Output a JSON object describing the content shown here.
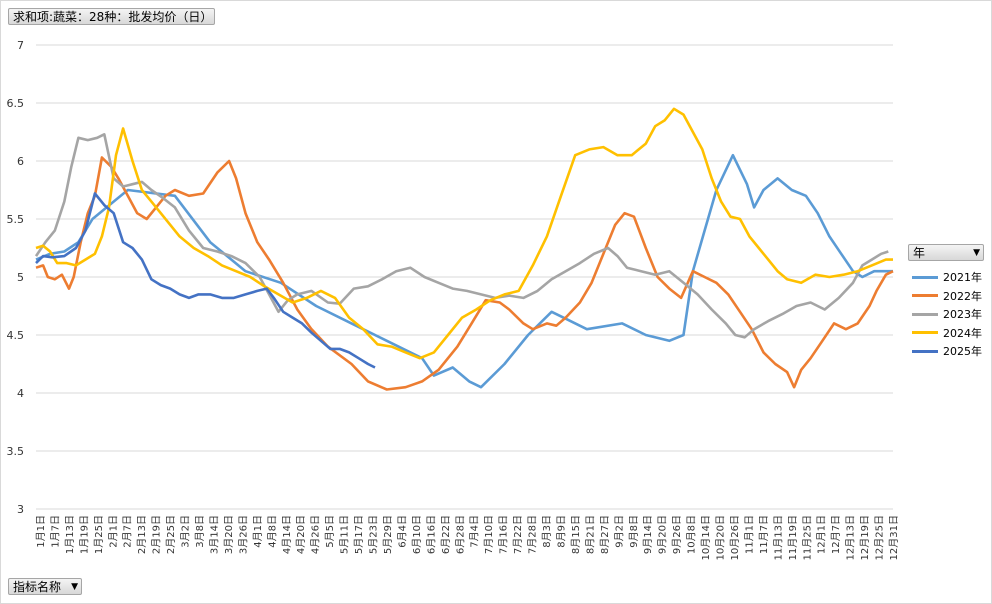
{
  "value_field_label": "求和项:蔬菜：28种：批发均价（日）",
  "legend_field_label": "年",
  "axis_field_label": "指标名称",
  "chart_data": {
    "type": "line",
    "ylim": [
      3,
      7
    ],
    "yticks": [
      "3",
      "3.5",
      "4",
      "4.5",
      "5",
      "5.5",
      "6",
      "6.5",
      "7"
    ],
    "x_axis": "day of year (Jan 1 – Dec 31)",
    "xtick_labels": [
      "1月1日",
      "1月7日",
      "1月13日",
      "1月19日",
      "1月25日",
      "2月1日",
      "2月7日",
      "2月13日",
      "2月19日",
      "2月25日",
      "3月2日",
      "3月8日",
      "3月14日",
      "3月20日",
      "3月26日",
      "4月1日",
      "4月8日",
      "4月14日",
      "4月20日",
      "4月26日",
      "5月5日",
      "5月11日",
      "5月17日",
      "5月23日",
      "5月29日",
      "6月4日",
      "6月10日",
      "6月16日",
      "6月22日",
      "6月28日",
      "7月4日",
      "7月10日",
      "7月16日",
      "7月22日",
      "7月28日",
      "8月3日",
      "8月9日",
      "8月15日",
      "8月21日",
      "8月27日",
      "9月2日",
      "9月8日",
      "9月14日",
      "9月20日",
      "9月26日",
      "10月8日",
      "10月14日",
      "10月20日",
      "10月26日",
      "11月1日",
      "11月7日",
      "11月13日",
      "11月19日",
      "11月25日",
      "12月1日",
      "12月7日",
      "12月13日",
      "12月19日",
      "12月25日",
      "12月31日"
    ],
    "series": [
      {
        "name": "2021年",
        "color": "#5b9bd5",
        "points": [
          [
            1,
            5.15
          ],
          [
            7,
            5.2
          ],
          [
            13,
            5.22
          ],
          [
            19,
            5.3
          ],
          [
            25,
            5.5
          ],
          [
            31,
            5.6
          ],
          [
            40,
            5.75
          ],
          [
            60,
            5.7
          ],
          [
            75,
            5.3
          ],
          [
            90,
            5.05
          ],
          [
            105,
            4.95
          ],
          [
            120,
            4.75
          ],
          [
            135,
            4.6
          ],
          [
            150,
            4.45
          ],
          [
            165,
            4.3
          ],
          [
            170,
            4.15
          ],
          [
            178,
            4.22
          ],
          [
            185,
            4.1
          ],
          [
            190,
            4.05
          ],
          [
            200,
            4.25
          ],
          [
            210,
            4.5
          ],
          [
            220,
            4.7
          ],
          [
            225,
            4.65
          ],
          [
            235,
            4.55
          ],
          [
            250,
            4.6
          ],
          [
            260,
            4.5
          ],
          [
            270,
            4.45
          ],
          [
            276,
            4.5
          ],
          [
            280,
            5.05
          ],
          [
            285,
            5.4
          ],
          [
            290,
            5.75
          ],
          [
            297,
            6.05
          ],
          [
            303,
            5.8
          ],
          [
            306,
            5.6
          ],
          [
            310,
            5.75
          ],
          [
            316,
            5.85
          ],
          [
            322,
            5.75
          ],
          [
            328,
            5.7
          ],
          [
            333,
            5.55
          ],
          [
            338,
            5.35
          ],
          [
            343,
            5.2
          ],
          [
            348,
            5.05
          ],
          [
            352,
            5.0
          ],
          [
            357,
            5.05
          ],
          [
            365,
            5.05
          ]
        ]
      },
      {
        "name": "2022年",
        "color": "#ed7d31",
        "points": [
          [
            1,
            5.08
          ],
          [
            4,
            5.1
          ],
          [
            6,
            5.0
          ],
          [
            9,
            4.98
          ],
          [
            12,
            5.02
          ],
          [
            15,
            4.9
          ],
          [
            17,
            5.0
          ],
          [
            20,
            5.3
          ],
          [
            23,
            5.55
          ],
          [
            26,
            5.7
          ],
          [
            29,
            6.03
          ],
          [
            33,
            5.95
          ],
          [
            36,
            5.85
          ],
          [
            40,
            5.7
          ],
          [
            44,
            5.55
          ],
          [
            48,
            5.5
          ],
          [
            52,
            5.6
          ],
          [
            56,
            5.7
          ],
          [
            60,
            5.75
          ],
          [
            66,
            5.7
          ],
          [
            72,
            5.72
          ],
          [
            78,
            5.9
          ],
          [
            83,
            6.0
          ],
          [
            86,
            5.85
          ],
          [
            90,
            5.55
          ],
          [
            95,
            5.3
          ],
          [
            100,
            5.15
          ],
          [
            106,
            4.95
          ],
          [
            112,
            4.72
          ],
          [
            118,
            4.55
          ],
          [
            125,
            4.4
          ],
          [
            135,
            4.25
          ],
          [
            142,
            4.1
          ],
          [
            150,
            4.03
          ],
          [
            158,
            4.05
          ],
          [
            165,
            4.1
          ],
          [
            172,
            4.2
          ],
          [
            180,
            4.4
          ],
          [
            186,
            4.6
          ],
          [
            192,
            4.8
          ],
          [
            198,
            4.78
          ],
          [
            202,
            4.72
          ],
          [
            208,
            4.6
          ],
          [
            212,
            4.55
          ],
          [
            218,
            4.6
          ],
          [
            222,
            4.58
          ],
          [
            226,
            4.65
          ],
          [
            232,
            4.78
          ],
          [
            237,
            4.95
          ],
          [
            242,
            5.2
          ],
          [
            247,
            5.45
          ],
          [
            251,
            5.55
          ],
          [
            255,
            5.52
          ],
          [
            260,
            5.25
          ],
          [
            265,
            5.0
          ],
          [
            270,
            4.9
          ],
          [
            275,
            4.82
          ],
          [
            280,
            5.05
          ],
          [
            285,
            5.0
          ],
          [
            290,
            4.95
          ],
          [
            295,
            4.85
          ],
          [
            300,
            4.7
          ],
          [
            305,
            4.55
          ],
          [
            310,
            4.35
          ],
          [
            315,
            4.25
          ],
          [
            320,
            4.18
          ],
          [
            323,
            4.05
          ],
          [
            326,
            4.2
          ],
          [
            330,
            4.3
          ],
          [
            335,
            4.45
          ],
          [
            340,
            4.6
          ],
          [
            345,
            4.55
          ],
          [
            350,
            4.6
          ],
          [
            355,
            4.75
          ],
          [
            358,
            4.88
          ],
          [
            362,
            5.02
          ],
          [
            365,
            5.05
          ]
        ]
      },
      {
        "name": "2023年",
        "color": "#a5a5a5",
        "points": [
          [
            1,
            5.18
          ],
          [
            5,
            5.3
          ],
          [
            9,
            5.4
          ],
          [
            13,
            5.65
          ],
          [
            16,
            5.95
          ],
          [
            19,
            6.2
          ],
          [
            23,
            6.18
          ],
          [
            27,
            6.2
          ],
          [
            30,
            6.23
          ],
          [
            34,
            5.85
          ],
          [
            38,
            5.78
          ],
          [
            42,
            5.8
          ],
          [
            46,
            5.82
          ],
          [
            50,
            5.75
          ],
          [
            55,
            5.68
          ],
          [
            60,
            5.6
          ],
          [
            66,
            5.4
          ],
          [
            72,
            5.25
          ],
          [
            78,
            5.22
          ],
          [
            84,
            5.18
          ],
          [
            90,
            5.12
          ],
          [
            96,
            5.0
          ],
          [
            100,
            4.85
          ],
          [
            104,
            4.7
          ],
          [
            108,
            4.8
          ],
          [
            112,
            4.85
          ],
          [
            118,
            4.88
          ],
          [
            125,
            4.78
          ],
          [
            130,
            4.77
          ],
          [
            136,
            4.9
          ],
          [
            142,
            4.92
          ],
          [
            148,
            4.98
          ],
          [
            154,
            5.05
          ],
          [
            160,
            5.08
          ],
          [
            166,
            5.0
          ],
          [
            172,
            4.95
          ],
          [
            178,
            4.9
          ],
          [
            184,
            4.88
          ],
          [
            190,
            4.85
          ],
          [
            196,
            4.82
          ],
          [
            202,
            4.84
          ],
          [
            208,
            4.82
          ],
          [
            214,
            4.88
          ],
          [
            220,
            4.98
          ],
          [
            226,
            5.05
          ],
          [
            232,
            5.12
          ],
          [
            238,
            5.2
          ],
          [
            244,
            5.25
          ],
          [
            248,
            5.18
          ],
          [
            252,
            5.08
          ],
          [
            258,
            5.05
          ],
          [
            264,
            5.02
          ],
          [
            270,
            5.05
          ],
          [
            276,
            4.95
          ],
          [
            282,
            4.85
          ],
          [
            288,
            4.72
          ],
          [
            294,
            4.6
          ],
          [
            298,
            4.5
          ],
          [
            302,
            4.48
          ],
          [
            306,
            4.55
          ],
          [
            312,
            4.62
          ],
          [
            318,
            4.68
          ],
          [
            324,
            4.75
          ],
          [
            330,
            4.78
          ],
          [
            336,
            4.72
          ],
          [
            342,
            4.82
          ],
          [
            348,
            4.95
          ],
          [
            352,
            5.1
          ],
          [
            356,
            5.15
          ],
          [
            360,
            5.2
          ],
          [
            363,
            5.22
          ]
        ]
      },
      {
        "name": "2024年",
        "color": "#ffc000",
        "points": [
          [
            1,
            5.25
          ],
          [
            4,
            5.27
          ],
          [
            7,
            5.22
          ],
          [
            10,
            5.12
          ],
          [
            14,
            5.12
          ],
          [
            18,
            5.1
          ],
          [
            22,
            5.15
          ],
          [
            26,
            5.2
          ],
          [
            29,
            5.35
          ],
          [
            32,
            5.6
          ],
          [
            35,
            6.05
          ],
          [
            38,
            6.28
          ],
          [
            42,
            6.0
          ],
          [
            46,
            5.75
          ],
          [
            50,
            5.65
          ],
          [
            54,
            5.55
          ],
          [
            58,
            5.45
          ],
          [
            62,
            5.35
          ],
          [
            68,
            5.25
          ],
          [
            74,
            5.18
          ],
          [
            80,
            5.1
          ],
          [
            86,
            5.05
          ],
          [
            92,
            5.0
          ],
          [
            98,
            4.92
          ],
          [
            104,
            4.85
          ],
          [
            110,
            4.78
          ],
          [
            116,
            4.82
          ],
          [
            122,
            4.88
          ],
          [
            128,
            4.82
          ],
          [
            134,
            4.65
          ],
          [
            140,
            4.55
          ],
          [
            146,
            4.42
          ],
          [
            152,
            4.4
          ],
          [
            158,
            4.35
          ],
          [
            164,
            4.3
          ],
          [
            170,
            4.35
          ],
          [
            176,
            4.5
          ],
          [
            182,
            4.65
          ],
          [
            188,
            4.72
          ],
          [
            194,
            4.8
          ],
          [
            200,
            4.85
          ],
          [
            206,
            4.88
          ],
          [
            212,
            5.1
          ],
          [
            218,
            5.35
          ],
          [
            224,
            5.7
          ],
          [
            230,
            6.05
          ],
          [
            236,
            6.1
          ],
          [
            242,
            6.12
          ],
          [
            248,
            6.05
          ],
          [
            254,
            6.05
          ],
          [
            260,
            6.15
          ],
          [
            264,
            6.3
          ],
          [
            268,
            6.35
          ],
          [
            272,
            6.45
          ],
          [
            276,
            6.4
          ],
          [
            280,
            6.25
          ],
          [
            284,
            6.1
          ],
          [
            288,
            5.85
          ],
          [
            292,
            5.65
          ],
          [
            296,
            5.52
          ],
          [
            300,
            5.5
          ],
          [
            304,
            5.35
          ],
          [
            308,
            5.25
          ],
          [
            312,
            5.15
          ],
          [
            316,
            5.05
          ],
          [
            320,
            4.98
          ],
          [
            326,
            4.95
          ],
          [
            332,
            5.02
          ],
          [
            338,
            5.0
          ],
          [
            344,
            5.02
          ],
          [
            350,
            5.05
          ],
          [
            356,
            5.1
          ],
          [
            362,
            5.15
          ],
          [
            365,
            5.15
          ]
        ]
      },
      {
        "name": "2025年",
        "color": "#4472c4",
        "points": [
          [
            1,
            5.12
          ],
          [
            4,
            5.18
          ],
          [
            8,
            5.17
          ],
          [
            13,
            5.18
          ],
          [
            18,
            5.25
          ],
          [
            22,
            5.4
          ],
          [
            26,
            5.72
          ],
          [
            30,
            5.62
          ],
          [
            34,
            5.55
          ],
          [
            38,
            5.3
          ],
          [
            42,
            5.25
          ],
          [
            46,
            5.15
          ],
          [
            50,
            4.98
          ],
          [
            54,
            4.93
          ],
          [
            58,
            4.9
          ],
          [
            62,
            4.85
          ],
          [
            66,
            4.82
          ],
          [
            70,
            4.85
          ],
          [
            75,
            4.85
          ],
          [
            80,
            4.82
          ],
          [
            85,
            4.82
          ],
          [
            90,
            4.85
          ],
          [
            95,
            4.88
          ],
          [
            99,
            4.9
          ],
          [
            102,
            4.82
          ],
          [
            106,
            4.7
          ],
          [
            110,
            4.65
          ],
          [
            114,
            4.6
          ],
          [
            118,
            4.52
          ],
          [
            122,
            4.45
          ],
          [
            126,
            4.38
          ],
          [
            130,
            4.38
          ],
          [
            134,
            4.35
          ],
          [
            138,
            4.3
          ],
          [
            142,
            4.25
          ],
          [
            145,
            4.22
          ]
        ]
      }
    ]
  }
}
